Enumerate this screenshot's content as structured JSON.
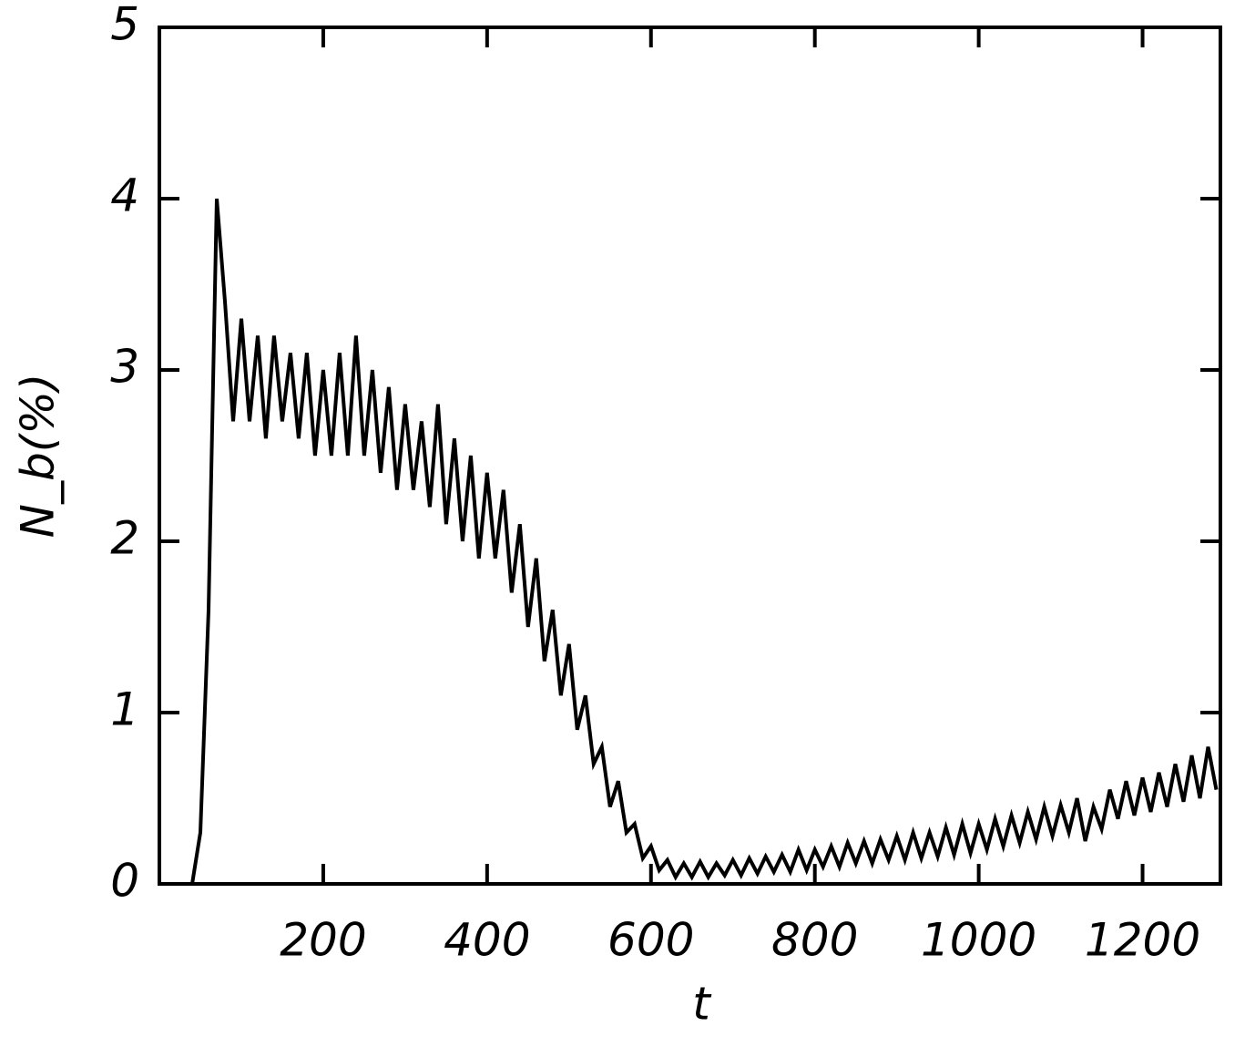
{
  "chart_data": {
    "type": "line",
    "x_label": "t",
    "y_label": "N_b(%)",
    "xlim": [
      0,
      1295
    ],
    "ylim": [
      0,
      5
    ],
    "xticks": [
      200,
      400,
      600,
      800,
      1000,
      1200
    ],
    "yticks": [
      0,
      1,
      2,
      3,
      4,
      5
    ],
    "grid": false,
    "x": [
      40,
      50,
      60,
      70,
      80,
      90,
      100,
      110,
      120,
      130,
      140,
      150,
      160,
      170,
      180,
      190,
      200,
      210,
      220,
      230,
      240,
      250,
      260,
      270,
      280,
      290,
      300,
      310,
      320,
      330,
      340,
      350,
      360,
      370,
      380,
      390,
      400,
      410,
      420,
      430,
      440,
      450,
      460,
      470,
      480,
      490,
      500,
      510,
      520,
      530,
      540,
      550,
      560,
      570,
      580,
      590,
      600,
      610,
      620,
      630,
      640,
      650,
      660,
      670,
      680,
      690,
      700,
      710,
      720,
      730,
      740,
      750,
      760,
      770,
      780,
      790,
      800,
      810,
      820,
      830,
      840,
      850,
      860,
      870,
      880,
      890,
      900,
      910,
      920,
      930,
      940,
      950,
      960,
      970,
      980,
      990,
      1000,
      1010,
      1020,
      1030,
      1040,
      1050,
      1060,
      1070,
      1080,
      1090,
      1100,
      1110,
      1120,
      1130,
      1140,
      1150,
      1160,
      1170,
      1180,
      1190,
      1200,
      1210,
      1220,
      1230,
      1240,
      1250,
      1260,
      1270,
      1280,
      1290
    ],
    "series": [
      {
        "color": "#000000",
        "values": [
          0,
          0.3,
          1.6,
          4.0,
          3.4,
          2.7,
          3.3,
          2.7,
          3.2,
          2.6,
          3.2,
          2.7,
          3.1,
          2.6,
          3.1,
          2.5,
          3.0,
          2.5,
          3.1,
          2.5,
          3.2,
          2.5,
          3.0,
          2.4,
          2.9,
          2.3,
          2.8,
          2.3,
          2.7,
          2.2,
          2.8,
          2.1,
          2.6,
          2.0,
          2.5,
          1.9,
          2.4,
          1.9,
          2.3,
          1.7,
          2.1,
          1.5,
          1.9,
          1.3,
          1.6,
          1.1,
          1.4,
          0.9,
          1.1,
          0.7,
          0.8,
          0.45,
          0.6,
          0.3,
          0.35,
          0.15,
          0.22,
          0.08,
          0.14,
          0.04,
          0.12,
          0.04,
          0.13,
          0.04,
          0.12,
          0.05,
          0.14,
          0.05,
          0.15,
          0.06,
          0.16,
          0.07,
          0.17,
          0.07,
          0.2,
          0.08,
          0.2,
          0.1,
          0.22,
          0.1,
          0.24,
          0.12,
          0.25,
          0.12,
          0.26,
          0.14,
          0.28,
          0.14,
          0.3,
          0.15,
          0.3,
          0.16,
          0.33,
          0.17,
          0.35,
          0.18,
          0.35,
          0.2,
          0.38,
          0.22,
          0.4,
          0.24,
          0.42,
          0.26,
          0.45,
          0.28,
          0.46,
          0.3,
          0.5,
          0.25,
          0.45,
          0.32,
          0.55,
          0.38,
          0.6,
          0.4,
          0.62,
          0.42,
          0.65,
          0.45,
          0.7,
          0.48,
          0.75,
          0.5,
          0.8,
          0.55
        ]
      }
    ]
  }
}
